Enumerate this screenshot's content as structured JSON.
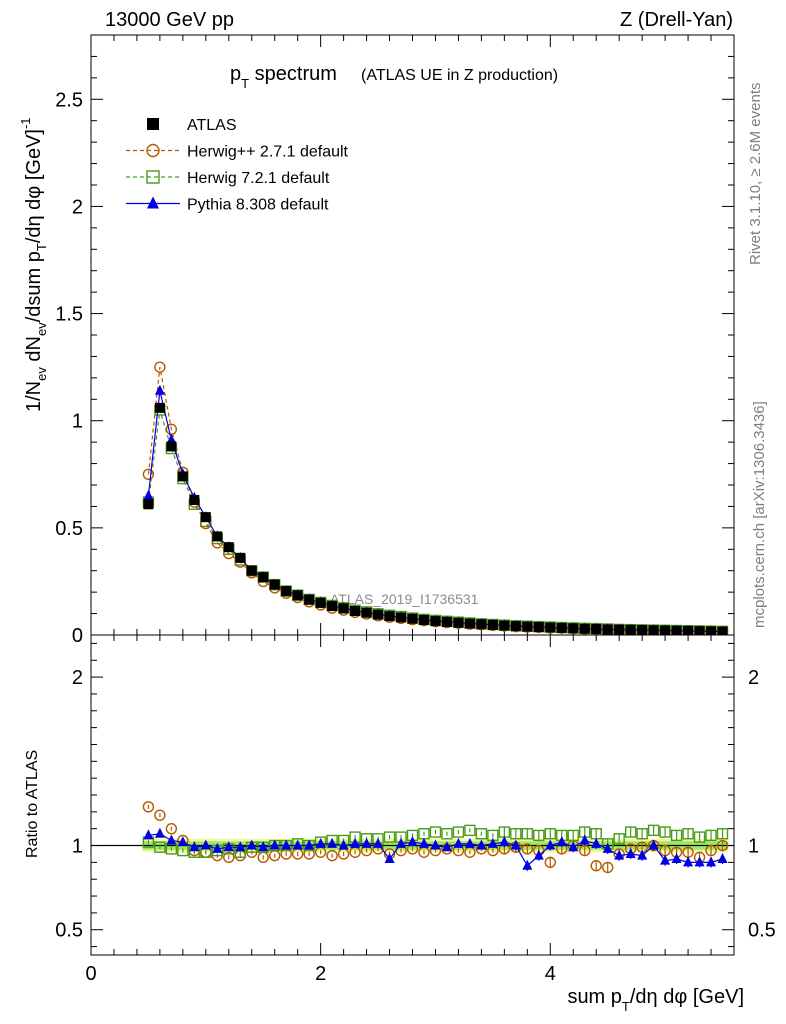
{
  "header": {
    "left": "13000 GeV pp",
    "right": "Z (Drell-Yan)"
  },
  "side_labels": {
    "rivet": "Rivet 3.1.10, ≥ 2.6M events",
    "mcplots": "mcplots.cern.ch [arXiv:1306.3436]"
  },
  "chart_data": [
    {
      "type": "scatter",
      "panel": "main",
      "title_main": "p",
      "title_sub": "T",
      "title_tail": " spectrum",
      "title_paren": "(ATLAS UE in Z production)",
      "watermark": "ATLAS_2019_I1736531",
      "ylabel": "1/N_ev dN_ev/dsum p_T/dη dφ [GeV]^-1",
      "ylim": [
        0,
        2.8
      ],
      "xlim": [
        0,
        5.6
      ],
      "yticks": [
        0,
        0.5,
        1,
        1.5,
        2,
        2.5
      ],
      "ytick_labels": [
        "0",
        "0.5",
        "1",
        "1.5",
        "2",
        "2.5"
      ],
      "legend_position": "top-left",
      "x": [
        0.5,
        0.6,
        0.7,
        0.8,
        0.9,
        1.0,
        1.1,
        1.2,
        1.3,
        1.4,
        1.5,
        1.6,
        1.7,
        1.8,
        1.9,
        2.0,
        2.1,
        2.2,
        2.3,
        2.4,
        2.5,
        2.6,
        2.7,
        2.8,
        2.9,
        3.0,
        3.1,
        3.2,
        3.3,
        3.4,
        3.5,
        3.6,
        3.7,
        3.8,
        3.9,
        4.0,
        4.1,
        4.2,
        4.3,
        4.4,
        4.5,
        4.6,
        4.7,
        4.8,
        4.9,
        5.0,
        5.1,
        5.2,
        5.3,
        5.4,
        5.5
      ],
      "series": [
        {
          "name": "ATLAS",
          "color": "#000000",
          "marker": "filled-square",
          "values": [
            0.61,
            1.06,
            0.88,
            0.74,
            0.63,
            0.55,
            0.46,
            0.41,
            0.36,
            0.3,
            0.27,
            0.235,
            0.205,
            0.185,
            0.165,
            0.15,
            0.135,
            0.124,
            0.112,
            0.104,
            0.095,
            0.088,
            0.082,
            0.076,
            0.07,
            0.065,
            0.061,
            0.057,
            0.053,
            0.05,
            0.047,
            0.044,
            0.041,
            0.039,
            0.037,
            0.035,
            0.033,
            0.031,
            0.029,
            0.028,
            0.026,
            0.025,
            0.024,
            0.023,
            0.022,
            0.021,
            0.02,
            0.019,
            0.018,
            0.017,
            0.016
          ]
        },
        {
          "name": "Herwig++ 2.7.1 default",
          "color": "#b35900",
          "marker": "open-circle",
          "line": "dashed",
          "values": [
            0.75,
            1.25,
            0.96,
            0.76,
            0.62,
            0.52,
            0.43,
            0.38,
            0.34,
            0.29,
            0.25,
            0.22,
            0.195,
            0.175,
            0.155,
            0.14,
            0.125,
            0.116,
            0.106,
            0.098,
            0.09,
            0.083,
            0.078,
            0.072,
            0.067,
            0.062,
            0.058,
            0.055,
            0.051,
            0.048,
            0.045,
            0.042,
            0.039,
            0.037,
            0.035,
            0.033,
            0.032,
            0.03,
            0.028,
            0.027,
            0.025,
            0.024,
            0.023,
            0.022,
            0.021,
            0.02,
            0.019,
            0.018,
            0.018,
            0.017,
            0.016
          ]
        },
        {
          "name": "Herwig 7.2.1 default",
          "color": "#4a9a1c",
          "marker": "open-square",
          "line": "dashed",
          "values": [
            0.62,
            1.05,
            0.87,
            0.73,
            0.61,
            0.53,
            0.45,
            0.4,
            0.35,
            0.3,
            0.27,
            0.235,
            0.205,
            0.186,
            0.166,
            0.152,
            0.138,
            0.127,
            0.116,
            0.108,
            0.099,
            0.092,
            0.086,
            0.079,
            0.073,
            0.068,
            0.064,
            0.06,
            0.056,
            0.052,
            0.049,
            0.046,
            0.043,
            0.041,
            0.039,
            0.037,
            0.035,
            0.033,
            0.031,
            0.03,
            0.028,
            0.026,
            0.025,
            0.024,
            0.023,
            0.022,
            0.021,
            0.02,
            0.019,
            0.018,
            0.017
          ]
        },
        {
          "name": "Pythia 8.308 default",
          "color": "#0000e0",
          "marker": "filled-triangle",
          "line": "solid",
          "values": [
            0.65,
            1.14,
            0.91,
            0.75,
            0.64,
            0.55,
            0.46,
            0.41,
            0.36,
            0.3,
            0.27,
            0.235,
            0.205,
            0.186,
            0.166,
            0.152,
            0.137,
            0.125,
            0.114,
            0.105,
            0.097,
            0.089,
            0.083,
            0.077,
            0.071,
            0.066,
            0.062,
            0.058,
            0.054,
            0.051,
            0.048,
            0.045,
            0.042,
            0.039,
            0.037,
            0.035,
            0.033,
            0.031,
            0.029,
            0.028,
            0.026,
            0.025,
            0.024,
            0.023,
            0.022,
            0.021,
            0.02,
            0.019,
            0.018,
            0.017,
            0.016
          ]
        }
      ]
    },
    {
      "type": "scatter",
      "panel": "ratio",
      "ylabel": "Ratio to ATLAS",
      "xlabel": "sum p_T/dη dφ [GeV]",
      "ylim": [
        0.35,
        2.25
      ],
      "xlim": [
        0,
        5.6
      ],
      "yticks": [
        0.5,
        1,
        2
      ],
      "ytick_labels": [
        "0.5",
        "1",
        "2"
      ],
      "xticks": [
        0,
        2,
        4
      ],
      "xtick_labels": [
        "0",
        "2",
        "4"
      ],
      "x": [
        0.5,
        0.6,
        0.7,
        0.8,
        0.9,
        1.0,
        1.1,
        1.2,
        1.3,
        1.4,
        1.5,
        1.6,
        1.7,
        1.8,
        1.9,
        2.0,
        2.1,
        2.2,
        2.3,
        2.4,
        2.5,
        2.6,
        2.7,
        2.8,
        2.9,
        3.0,
        3.1,
        3.2,
        3.3,
        3.4,
        3.5,
        3.6,
        3.7,
        3.8,
        3.9,
        4.0,
        4.1,
        4.2,
        4.3,
        4.4,
        4.5,
        4.6,
        4.7,
        4.8,
        4.9,
        5.0,
        5.1,
        5.2,
        5.3,
        5.4,
        5.5
      ],
      "series": [
        {
          "name": "Herwig++ 2.7.1 default",
          "color": "#b35900",
          "marker": "open-circle",
          "values": [
            1.23,
            1.18,
            1.1,
            1.03,
            0.97,
            0.96,
            0.94,
            0.93,
            0.94,
            0.96,
            0.93,
            0.94,
            0.95,
            0.95,
            0.95,
            0.96,
            0.94,
            0.95,
            0.96,
            0.97,
            0.98,
            0.95,
            0.97,
            0.98,
            0.96,
            0.97,
            0.98,
            0.97,
            0.96,
            0.98,
            0.97,
            0.98,
            0.99,
            0.98,
            0.97,
            0.9,
            0.98,
            1.0,
            0.97,
            0.88,
            0.87,
            0.95,
            0.98,
            0.99,
            1.0,
            0.97,
            0.96,
            0.96,
            0.93,
            0.97,
            1.0
          ]
        },
        {
          "name": "Herwig 7.2.1 default",
          "color": "#4a9a1c",
          "marker": "open-square",
          "values": [
            1.02,
            0.99,
            0.98,
            0.97,
            0.96,
            0.96,
            0.97,
            0.98,
            0.96,
            0.99,
            0.99,
            1.0,
            1.0,
            1.01,
            1.0,
            1.02,
            1.03,
            1.03,
            1.05,
            1.04,
            1.04,
            1.05,
            1.05,
            1.06,
            1.07,
            1.08,
            1.07,
            1.08,
            1.09,
            1.07,
            1.06,
            1.08,
            1.07,
            1.07,
            1.06,
            1.07,
            1.06,
            1.06,
            1.08,
            1.07,
            1.01,
            1.04,
            1.08,
            1.07,
            1.09,
            1.08,
            1.06,
            1.07,
            1.05,
            1.06,
            1.07
          ]
        },
        {
          "name": "Pythia 8.308 default",
          "color": "#0000e0",
          "marker": "filled-triangle",
          "values": [
            1.06,
            1.07,
            1.03,
            1.02,
            0.99,
            1.0,
            0.98,
            0.99,
            0.99,
            1.0,
            0.99,
            1.0,
            1.0,
            1.0,
            1.0,
            1.01,
            1.01,
            1.0,
            1.01,
            1.01,
            1.01,
            0.92,
            1.01,
            1.02,
            1.01,
            1.0,
            0.99,
            1.01,
            1.01,
            1.0,
            1.01,
            1.02,
            1.0,
            0.88,
            0.94,
            1.0,
            1.02,
            0.99,
            1.03,
            1.01,
            0.98,
            0.94,
            0.95,
            0.94,
            1.0,
            0.91,
            0.92,
            0.9,
            0.9,
            0.9,
            0.92
          ]
        }
      ]
    }
  ]
}
